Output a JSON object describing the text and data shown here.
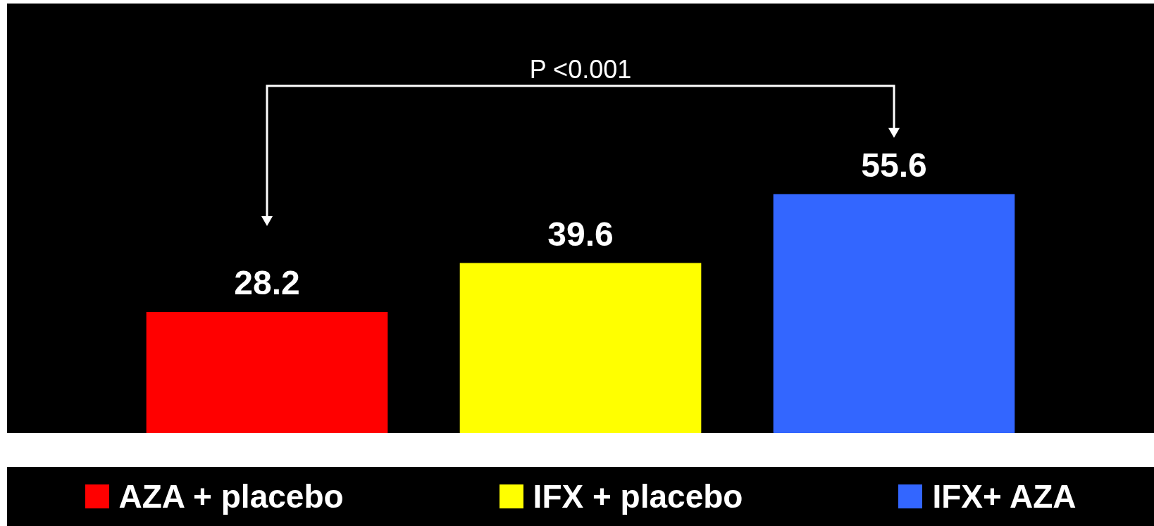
{
  "chart_data": {
    "type": "bar",
    "categories": [
      null
    ],
    "series": [
      {
        "name": "AZA + placebo",
        "color": "#ff0000",
        "values": [
          28.2
        ]
      },
      {
        "name": "IFX + placebo",
        "color": "#ffff00",
        "values": [
          39.6
        ]
      },
      {
        "name": "IFX+ AZA",
        "color": "#3366ff",
        "values": [
          55.6
        ]
      }
    ],
    "data_labels": true,
    "legend": "bottom",
    "tick_labels": false,
    "annotations": [
      "P <0.001"
    ]
  }
}
